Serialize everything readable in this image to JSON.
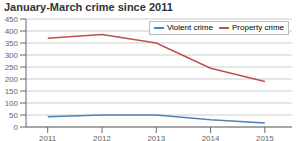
{
  "chart_data": {
    "type": "line",
    "title": "January-March crime since 2011",
    "x": [
      2011,
      2012,
      2013,
      2014,
      2015
    ],
    "series": [
      {
        "name": "Property crime",
        "color": "#c0504d",
        "values": [
          370,
          385,
          350,
          245,
          190
        ]
      },
      {
        "name": "Violent crime",
        "color": "#4f81bd",
        "values": [
          43,
          50,
          50,
          30,
          17
        ]
      }
    ],
    "xlim": [
      2010.6,
      2015.5
    ],
    "xticks": [
      2011,
      2012,
      2013,
      2014,
      2015
    ],
    "ylim": [
      0,
      450
    ],
    "yticks": [
      0,
      50,
      100,
      150,
      200,
      250,
      300,
      350,
      400,
      450
    ],
    "grid": true,
    "legend": "upper right"
  }
}
